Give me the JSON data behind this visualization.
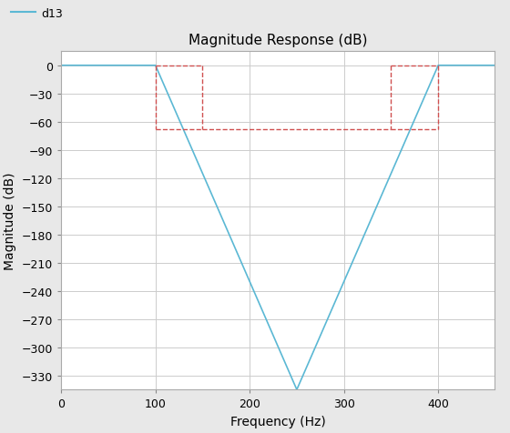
{
  "title": "Magnitude Response (dB)",
  "xlabel": "Frequency (Hz)",
  "ylabel": "Magnitude (dB)",
  "line_color": "#5BB8D4",
  "line_label": "d13",
  "dashed_color": "#D05050",
  "xlim": [
    0,
    460
  ],
  "ylim": [
    -345,
    15
  ],
  "xticks": [
    0,
    100,
    200,
    300,
    400
  ],
  "yticks": [
    0,
    -30,
    -60,
    -90,
    -120,
    -150,
    -180,
    -210,
    -240,
    -270,
    -300,
    -330
  ],
  "plot_bg_color": "#FFFFFF",
  "fig_bg_color": "#E8E8E8",
  "grid_color": "#CCCCCC",
  "f_pass_low": 100,
  "f_stop_low": 150,
  "f_notch": 250,
  "f_stop_high": 350,
  "f_pass_high": 400,
  "stopband_db": -68,
  "notch_db": -345,
  "title_fontsize": 11,
  "label_fontsize": 10,
  "tick_fontsize": 9,
  "figsize": [
    5.6,
    4.77
  ],
  "dpi": 100
}
